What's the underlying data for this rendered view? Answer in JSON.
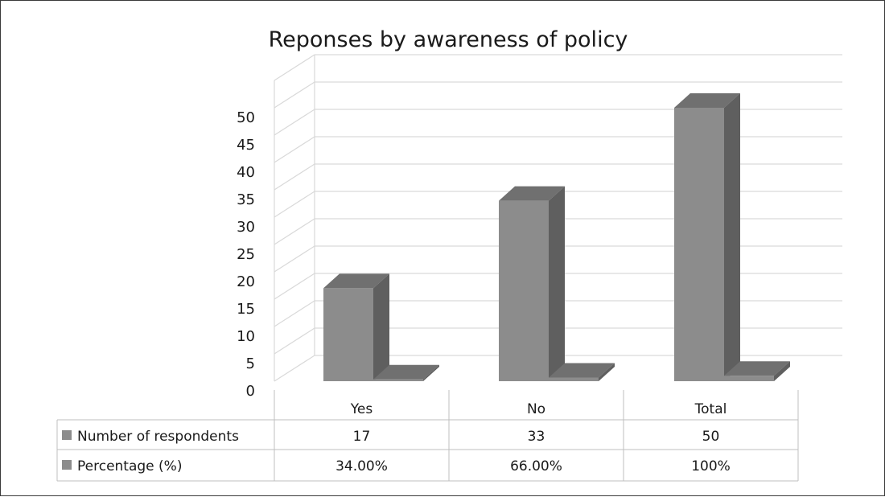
{
  "chart_data": {
    "type": "bar",
    "title": "Reponses by awareness of policy",
    "categories": [
      "Yes",
      "No",
      "Total"
    ],
    "series": [
      {
        "name": "Number of respondents",
        "values": [
          17,
          33,
          50
        ],
        "color": "#8c8c8c"
      },
      {
        "name": "Percentage (%)",
        "values": [
          0.34,
          0.66,
          1.0
        ],
        "color": "#8c8c8c"
      }
    ],
    "data_table": {
      "rows": [
        {
          "label": "Number of respondents",
          "cells": [
            "17",
            "33",
            "50"
          ]
        },
        {
          "label": "Percentage (%)",
          "cells": [
            "34.00%",
            "66.00%",
            "100%"
          ]
        }
      ]
    },
    "yticks": [
      "0",
      "5",
      "10",
      "15",
      "20",
      "25",
      "30",
      "35",
      "40",
      "45",
      "50"
    ],
    "ylim": [
      0,
      55
    ],
    "grid": true,
    "style": "3d-column",
    "colors": {
      "front": "#8c8c8c",
      "side": "#5f5f5f",
      "top": "#707070",
      "grid": "#d9d9d9"
    }
  }
}
